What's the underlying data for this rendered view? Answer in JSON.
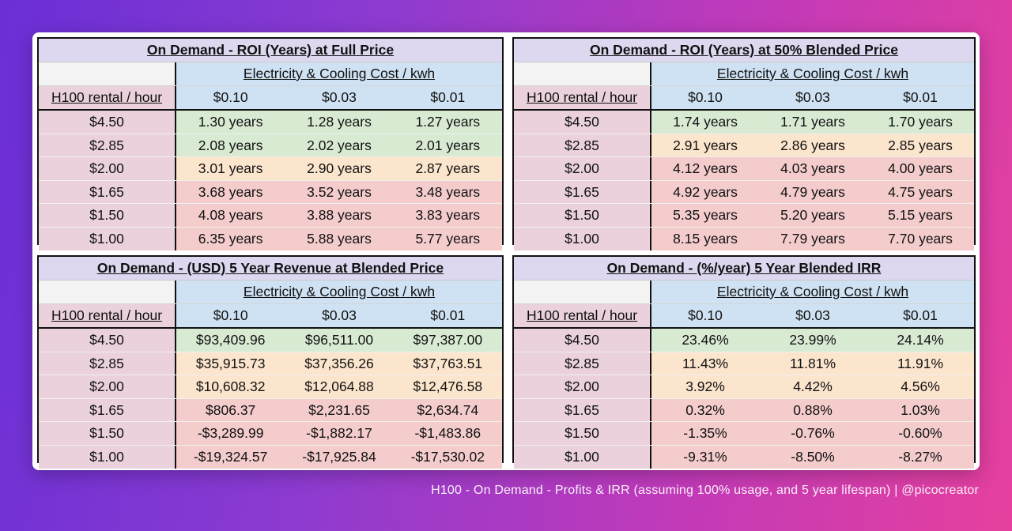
{
  "caption": "H100 - On Demand - Profits & IRR (assuming 100% usage, and 5 year lifespan) | @picocreator",
  "colors": {
    "green": "#d9ead3",
    "orange": "#fce5cd",
    "red": "#f4cccc",
    "header_blue": "#cfe2f3",
    "row_label": "#ead1dc",
    "title_bg": "#ddd8f0"
  },
  "panels": [
    {
      "title": "On Demand - ROI (Years) at Full Price",
      "col_group": "Electricity & Cooling Cost / kwh",
      "row_header": "H100 rental / hour",
      "columns": [
        "$0.10",
        "$0.03",
        "$0.01"
      ],
      "rows": [
        {
          "label": "$4.50",
          "band": "g",
          "values": [
            "1.30 years",
            "1.28 years",
            "1.27 years"
          ]
        },
        {
          "label": "$2.85",
          "band": "g",
          "values": [
            "2.08 years",
            "2.02 years",
            "2.01 years"
          ]
        },
        {
          "label": "$2.00",
          "band": "o",
          "values": [
            "3.01 years",
            "2.90 years",
            "2.87 years"
          ]
        },
        {
          "label": "$1.65",
          "band": "r",
          "values": [
            "3.68 years",
            "3.52 years",
            "3.48 years"
          ]
        },
        {
          "label": "$1.50",
          "band": "r",
          "values": [
            "4.08 years",
            "3.88 years",
            "3.83 years"
          ]
        },
        {
          "label": "$1.00",
          "band": "r",
          "values": [
            "6.35 years",
            "5.88 years",
            "5.77 years"
          ]
        }
      ]
    },
    {
      "title": "On Demand - ROI (Years) at 50% Blended Price",
      "col_group": "Electricity & Cooling Cost / kwh",
      "row_header": "H100 rental / hour",
      "columns": [
        "$0.10",
        "$0.03",
        "$0.01"
      ],
      "rows": [
        {
          "label": "$4.50",
          "band": "g",
          "values": [
            "1.74 years",
            "1.71 years",
            "1.70 years"
          ]
        },
        {
          "label": "$2.85",
          "band": "o",
          "values": [
            "2.91 years",
            "2.86 years",
            "2.85 years"
          ]
        },
        {
          "label": "$2.00",
          "band": "r",
          "values": [
            "4.12 years",
            "4.03 years",
            "4.00 years"
          ]
        },
        {
          "label": "$1.65",
          "band": "r",
          "values": [
            "4.92 years",
            "4.79 years",
            "4.75 years"
          ]
        },
        {
          "label": "$1.50",
          "band": "r",
          "values": [
            "5.35 years",
            "5.20 years",
            "5.15 years"
          ]
        },
        {
          "label": "$1.00",
          "band": "r",
          "values": [
            "8.15 years",
            "7.79 years",
            "7.70 years"
          ]
        }
      ]
    },
    {
      "title": "On Demand - (USD) 5 Year Revenue at Blended Price",
      "col_group": "Electricity & Cooling Cost / kwh",
      "row_header": "H100 rental / hour",
      "columns": [
        "$0.10",
        "$0.03",
        "$0.01"
      ],
      "rows": [
        {
          "label": "$4.50",
          "band": "g",
          "values": [
            "$93,409.96",
            "$96,511.00",
            "$97,387.00"
          ]
        },
        {
          "label": "$2.85",
          "band": "o",
          "values": [
            "$35,915.73",
            "$37,356.26",
            "$37,763.51"
          ]
        },
        {
          "label": "$2.00",
          "band": "o",
          "values": [
            "$10,608.32",
            "$12,064.88",
            "$12,476.58"
          ]
        },
        {
          "label": "$1.65",
          "band": "r",
          "values": [
            "$806.37",
            "$2,231.65",
            "$2,634.74"
          ]
        },
        {
          "label": "$1.50",
          "band": "r",
          "values": [
            "-$3,289.99",
            "-$1,882.17",
            "-$1,483.86"
          ]
        },
        {
          "label": "$1.00",
          "band": "r",
          "values": [
            "-$19,324.57",
            "-$17,925.84",
            "-$17,530.02"
          ]
        }
      ]
    },
    {
      "title": "On Demand - (%/year) 5 Year Blended IRR",
      "col_group": "Electricity & Cooling Cost / kwh",
      "row_header": "H100 rental / hour",
      "columns": [
        "$0.10",
        "$0.03",
        "$0.01"
      ],
      "rows": [
        {
          "label": "$4.50",
          "band": "g",
          "values": [
            "23.46%",
            "23.99%",
            "24.14%"
          ]
        },
        {
          "label": "$2.85",
          "band": "o",
          "values": [
            "11.43%",
            "11.81%",
            "11.91%"
          ]
        },
        {
          "label": "$2.00",
          "band": "o",
          "values": [
            "3.92%",
            "4.42%",
            "4.56%"
          ]
        },
        {
          "label": "$1.65",
          "band": "r",
          "values": [
            "0.32%",
            "0.88%",
            "1.03%"
          ]
        },
        {
          "label": "$1.50",
          "band": "r",
          "values": [
            "-1.35%",
            "-0.76%",
            "-0.60%"
          ]
        },
        {
          "label": "$1.00",
          "band": "r",
          "values": [
            "-9.31%",
            "-8.50%",
            "-8.27%"
          ]
        }
      ]
    }
  ]
}
